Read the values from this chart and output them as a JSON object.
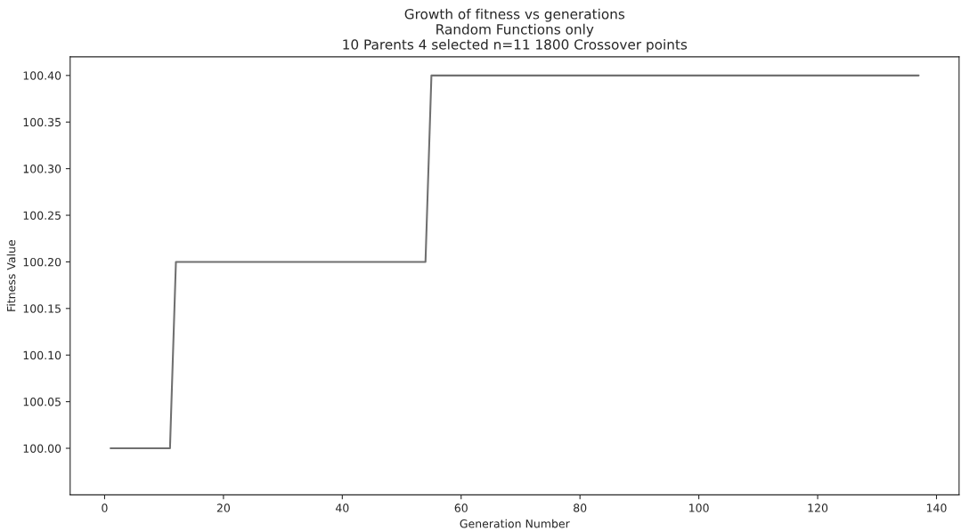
{
  "chart_data": {
    "type": "line",
    "title": "Growth of fitness vs generations\nRandom Functions only\n10 Parents 4 selected n=11 1800 Crossover points",
    "xlabel": "Generation Number",
    "ylabel": "Fitness Value",
    "series": [
      {
        "color": "#707070",
        "x": [
          1,
          11,
          12,
          54,
          55,
          137
        ],
        "values": [
          100.0,
          100.0,
          100.2,
          100.2,
          100.4,
          100.4
        ]
      }
    ],
    "xlim": [
      -5.8,
      143.8
    ],
    "xticks": [
      0,
      20,
      40,
      60,
      80,
      100,
      120,
      140
    ],
    "ylim": [
      99.95,
      100.42
    ],
    "yticks": [
      {
        "value": 100.0,
        "label": "100.00"
      },
      {
        "value": 100.05,
        "label": "100.05"
      },
      {
        "value": 100.1,
        "label": "100.10"
      },
      {
        "value": 100.15,
        "label": "100.15"
      },
      {
        "value": 100.2,
        "label": "100.20"
      },
      {
        "value": 100.25,
        "label": "100.25"
      },
      {
        "value": 100.3,
        "label": "100.30"
      },
      {
        "value": 100.35,
        "label": "100.35"
      },
      {
        "value": 100.4,
        "label": "100.40"
      }
    ],
    "grid": false,
    "marker": "none",
    "line_style": "solid"
  }
}
